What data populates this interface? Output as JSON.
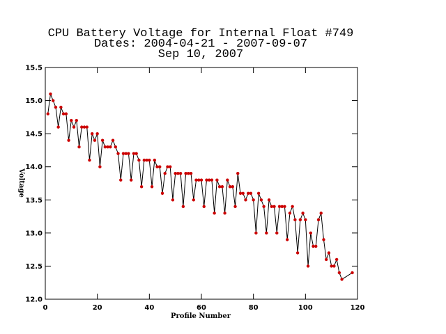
{
  "chart_data": {
    "type": "line",
    "title": "CPU Battery Voltage for Internal Float #749",
    "subtitle": "Dates:  2004-04-21 -  2007-09-07",
    "date_line": "Sep 10, 2007",
    "x_label": "Profile Number",
    "y_label": "Voltage",
    "line_color": "#000000",
    "marker_color": "#cc0000",
    "xlim": [
      0,
      120
    ],
    "xticks": [
      0,
      20,
      40,
      60,
      80,
      100,
      120
    ],
    "ylim": [
      12,
      15.5
    ],
    "yticks": [
      {
        "value": 12,
        "label": "12.0"
      },
      {
        "value": 12.5,
        "label": "12.5"
      },
      {
        "value": 13,
        "label": "13.0"
      },
      {
        "value": 13.5,
        "label": "13.5"
      },
      {
        "value": 14,
        "label": "14.0"
      },
      {
        "value": 14.5,
        "label": "14.5"
      },
      {
        "value": 15,
        "label": "15.0"
      },
      {
        "value": 15.5,
        "label": "15.5"
      }
    ],
    "x": [
      1,
      2,
      3,
      4,
      5,
      6,
      7,
      8,
      9,
      10,
      11,
      12,
      13,
      14,
      15,
      16,
      17,
      18,
      19,
      20,
      21,
      22,
      23,
      24,
      25,
      26,
      27,
      28,
      29,
      30,
      31,
      32,
      33,
      34,
      35,
      36,
      37,
      38,
      39,
      40,
      41,
      42,
      43,
      44,
      45,
      46,
      47,
      48,
      49,
      50,
      51,
      52,
      53,
      54,
      55,
      56,
      57,
      58,
      59,
      60,
      61,
      62,
      63,
      64,
      65,
      66,
      67,
      68,
      69,
      70,
      71,
      72,
      73,
      74,
      75,
      76,
      77,
      78,
      79,
      80,
      81,
      82,
      83,
      84,
      85,
      86,
      87,
      88,
      89,
      90,
      91,
      92,
      93,
      94,
      95,
      96,
      97,
      98,
      99,
      100,
      101,
      102,
      103,
      104,
      105,
      106,
      107,
      108,
      109,
      110,
      111,
      112,
      113,
      114,
      118
    ],
    "values": [
      14.8,
      15.1,
      15.0,
      14.9,
      14.6,
      14.9,
      14.8,
      14.8,
      14.4,
      14.7,
      14.6,
      14.7,
      14.3,
      14.6,
      14.6,
      14.6,
      14.1,
      14.5,
      14.4,
      14.5,
      14.0,
      14.4,
      14.3,
      14.3,
      14.3,
      14.4,
      14.3,
      14.2,
      13.8,
      14.2,
      14.2,
      14.2,
      13.8,
      14.2,
      14.2,
      14.1,
      13.7,
      14.1,
      14.1,
      14.1,
      13.7,
      14.1,
      14.0,
      14.0,
      13.6,
      13.9,
      14.0,
      14.0,
      13.5,
      13.9,
      13.9,
      13.9,
      13.4,
      13.9,
      13.9,
      13.9,
      13.5,
      13.8,
      13.8,
      13.8,
      13.4,
      13.8,
      13.8,
      13.8,
      13.3,
      13.8,
      13.7,
      13.7,
      13.3,
      13.8,
      13.7,
      13.7,
      13.4,
      13.9,
      13.6,
      13.6,
      13.5,
      13.6,
      13.6,
      13.5,
      13.0,
      13.6,
      13.5,
      13.4,
      13.0,
      13.5,
      13.4,
      13.4,
      13.0,
      13.4,
      13.4,
      13.4,
      12.9,
      13.3,
      13.4,
      13.2,
      12.7,
      13.2,
      13.3,
      13.2,
      12.5,
      13.0,
      12.8,
      12.8,
      13.2,
      13.3,
      12.9,
      12.6,
      12.7,
      12.5,
      12.5,
      12.6,
      12.4,
      12.3,
      12.4
    ]
  }
}
